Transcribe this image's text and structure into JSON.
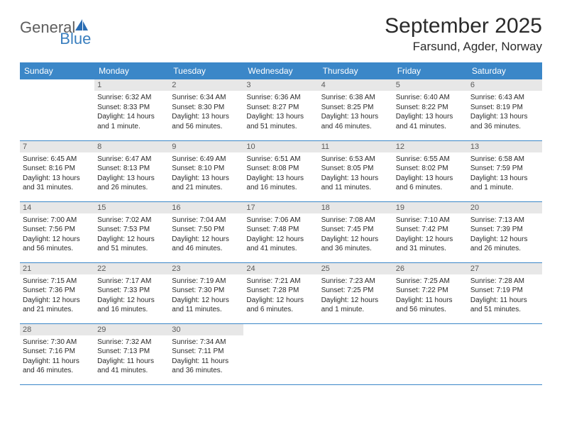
{
  "logo": {
    "text_general": "General",
    "text_blue": "Blue",
    "shape_color": "#2a6db3"
  },
  "title": "September 2025",
  "location": "Farsund, Agder, Norway",
  "colors": {
    "header_bg": "#3b87c8",
    "header_text": "#ffffff",
    "day_number_bg": "#e7e7e7",
    "day_number_text": "#5a5a5a",
    "cell_text": "#2a2a2a",
    "row_divider": "#3b87c8",
    "page_bg": "#ffffff"
  },
  "fonts": {
    "title_size_pt": 22,
    "location_size_pt": 13,
    "header_size_pt": 9,
    "cell_size_pt": 7.5
  },
  "days_of_week": [
    "Sunday",
    "Monday",
    "Tuesday",
    "Wednesday",
    "Thursday",
    "Friday",
    "Saturday"
  ],
  "weeks": [
    [
      {
        "day": ""
      },
      {
        "day": "1",
        "sunrise": "Sunrise: 6:32 AM",
        "sunset": "Sunset: 8:33 PM",
        "daylight_a": "Daylight: 14 hours",
        "daylight_b": "and 1 minute."
      },
      {
        "day": "2",
        "sunrise": "Sunrise: 6:34 AM",
        "sunset": "Sunset: 8:30 PM",
        "daylight_a": "Daylight: 13 hours",
        "daylight_b": "and 56 minutes."
      },
      {
        "day": "3",
        "sunrise": "Sunrise: 6:36 AM",
        "sunset": "Sunset: 8:27 PM",
        "daylight_a": "Daylight: 13 hours",
        "daylight_b": "and 51 minutes."
      },
      {
        "day": "4",
        "sunrise": "Sunrise: 6:38 AM",
        "sunset": "Sunset: 8:25 PM",
        "daylight_a": "Daylight: 13 hours",
        "daylight_b": "and 46 minutes."
      },
      {
        "day": "5",
        "sunrise": "Sunrise: 6:40 AM",
        "sunset": "Sunset: 8:22 PM",
        "daylight_a": "Daylight: 13 hours",
        "daylight_b": "and 41 minutes."
      },
      {
        "day": "6",
        "sunrise": "Sunrise: 6:43 AM",
        "sunset": "Sunset: 8:19 PM",
        "daylight_a": "Daylight: 13 hours",
        "daylight_b": "and 36 minutes."
      }
    ],
    [
      {
        "day": "7",
        "sunrise": "Sunrise: 6:45 AM",
        "sunset": "Sunset: 8:16 PM",
        "daylight_a": "Daylight: 13 hours",
        "daylight_b": "and 31 minutes."
      },
      {
        "day": "8",
        "sunrise": "Sunrise: 6:47 AM",
        "sunset": "Sunset: 8:13 PM",
        "daylight_a": "Daylight: 13 hours",
        "daylight_b": "and 26 minutes."
      },
      {
        "day": "9",
        "sunrise": "Sunrise: 6:49 AM",
        "sunset": "Sunset: 8:10 PM",
        "daylight_a": "Daylight: 13 hours",
        "daylight_b": "and 21 minutes."
      },
      {
        "day": "10",
        "sunrise": "Sunrise: 6:51 AM",
        "sunset": "Sunset: 8:08 PM",
        "daylight_a": "Daylight: 13 hours",
        "daylight_b": "and 16 minutes."
      },
      {
        "day": "11",
        "sunrise": "Sunrise: 6:53 AM",
        "sunset": "Sunset: 8:05 PM",
        "daylight_a": "Daylight: 13 hours",
        "daylight_b": "and 11 minutes."
      },
      {
        "day": "12",
        "sunrise": "Sunrise: 6:55 AM",
        "sunset": "Sunset: 8:02 PM",
        "daylight_a": "Daylight: 13 hours",
        "daylight_b": "and 6 minutes."
      },
      {
        "day": "13",
        "sunrise": "Sunrise: 6:58 AM",
        "sunset": "Sunset: 7:59 PM",
        "daylight_a": "Daylight: 13 hours",
        "daylight_b": "and 1 minute."
      }
    ],
    [
      {
        "day": "14",
        "sunrise": "Sunrise: 7:00 AM",
        "sunset": "Sunset: 7:56 PM",
        "daylight_a": "Daylight: 12 hours",
        "daylight_b": "and 56 minutes."
      },
      {
        "day": "15",
        "sunrise": "Sunrise: 7:02 AM",
        "sunset": "Sunset: 7:53 PM",
        "daylight_a": "Daylight: 12 hours",
        "daylight_b": "and 51 minutes."
      },
      {
        "day": "16",
        "sunrise": "Sunrise: 7:04 AM",
        "sunset": "Sunset: 7:50 PM",
        "daylight_a": "Daylight: 12 hours",
        "daylight_b": "and 46 minutes."
      },
      {
        "day": "17",
        "sunrise": "Sunrise: 7:06 AM",
        "sunset": "Sunset: 7:48 PM",
        "daylight_a": "Daylight: 12 hours",
        "daylight_b": "and 41 minutes."
      },
      {
        "day": "18",
        "sunrise": "Sunrise: 7:08 AM",
        "sunset": "Sunset: 7:45 PM",
        "daylight_a": "Daylight: 12 hours",
        "daylight_b": "and 36 minutes."
      },
      {
        "day": "19",
        "sunrise": "Sunrise: 7:10 AM",
        "sunset": "Sunset: 7:42 PM",
        "daylight_a": "Daylight: 12 hours",
        "daylight_b": "and 31 minutes."
      },
      {
        "day": "20",
        "sunrise": "Sunrise: 7:13 AM",
        "sunset": "Sunset: 7:39 PM",
        "daylight_a": "Daylight: 12 hours",
        "daylight_b": "and 26 minutes."
      }
    ],
    [
      {
        "day": "21",
        "sunrise": "Sunrise: 7:15 AM",
        "sunset": "Sunset: 7:36 PM",
        "daylight_a": "Daylight: 12 hours",
        "daylight_b": "and 21 minutes."
      },
      {
        "day": "22",
        "sunrise": "Sunrise: 7:17 AM",
        "sunset": "Sunset: 7:33 PM",
        "daylight_a": "Daylight: 12 hours",
        "daylight_b": "and 16 minutes."
      },
      {
        "day": "23",
        "sunrise": "Sunrise: 7:19 AM",
        "sunset": "Sunset: 7:30 PM",
        "daylight_a": "Daylight: 12 hours",
        "daylight_b": "and 11 minutes."
      },
      {
        "day": "24",
        "sunrise": "Sunrise: 7:21 AM",
        "sunset": "Sunset: 7:28 PM",
        "daylight_a": "Daylight: 12 hours",
        "daylight_b": "and 6 minutes."
      },
      {
        "day": "25",
        "sunrise": "Sunrise: 7:23 AM",
        "sunset": "Sunset: 7:25 PM",
        "daylight_a": "Daylight: 12 hours",
        "daylight_b": "and 1 minute."
      },
      {
        "day": "26",
        "sunrise": "Sunrise: 7:25 AM",
        "sunset": "Sunset: 7:22 PM",
        "daylight_a": "Daylight: 11 hours",
        "daylight_b": "and 56 minutes."
      },
      {
        "day": "27",
        "sunrise": "Sunrise: 7:28 AM",
        "sunset": "Sunset: 7:19 PM",
        "daylight_a": "Daylight: 11 hours",
        "daylight_b": "and 51 minutes."
      }
    ],
    [
      {
        "day": "28",
        "sunrise": "Sunrise: 7:30 AM",
        "sunset": "Sunset: 7:16 PM",
        "daylight_a": "Daylight: 11 hours",
        "daylight_b": "and 46 minutes."
      },
      {
        "day": "29",
        "sunrise": "Sunrise: 7:32 AM",
        "sunset": "Sunset: 7:13 PM",
        "daylight_a": "Daylight: 11 hours",
        "daylight_b": "and 41 minutes."
      },
      {
        "day": "30",
        "sunrise": "Sunrise: 7:34 AM",
        "sunset": "Sunset: 7:11 PM",
        "daylight_a": "Daylight: 11 hours",
        "daylight_b": "and 36 minutes."
      },
      {
        "day": ""
      },
      {
        "day": ""
      },
      {
        "day": ""
      },
      {
        "day": ""
      }
    ]
  ]
}
